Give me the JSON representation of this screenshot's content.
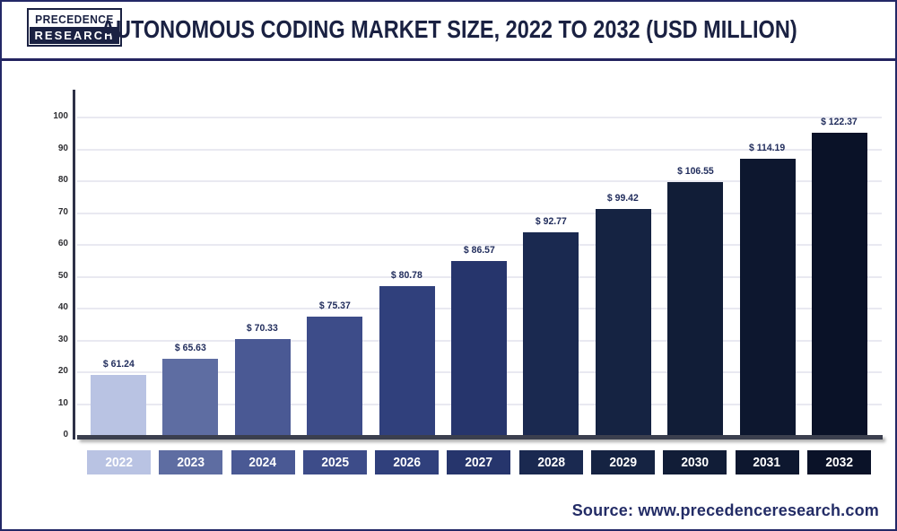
{
  "header": {
    "logo_line1": "PRECEDENCE",
    "logo_line2": "RESEARCH",
    "title": "AUTONOMOUS CODING MARKET SIZE, 2022 TO 2032 (USD MILLION)"
  },
  "footer": {
    "source_label": "Source: www.precedenceresearch.com"
  },
  "chart_data": {
    "type": "bar",
    "title": "Autonomous Coding Market Size, 2022 to 2032 (USD Million)",
    "unit": "USD Million",
    "categories": [
      "2022",
      "2023",
      "2024",
      "2025",
      "2026",
      "2027",
      "2028",
      "2029",
      "2030",
      "2031",
      "2032"
    ],
    "values": [
      61.24,
      65.63,
      70.33,
      75.37,
      80.78,
      86.57,
      92.77,
      99.42,
      106.55,
      114.19,
      122.37
    ],
    "labels": [
      "$ 61.24",
      "$ 65.63",
      "$ 70.33",
      "$ 75.37",
      "$ 80.78",
      "$ 86.57",
      "$ 92.77",
      "$ 99.42",
      "$ 106.55",
      "$ 114.19",
      "$ 122.37"
    ],
    "y_ticks": [
      0,
      10,
      20,
      30,
      40,
      50,
      60,
      70,
      80,
      90,
      100
    ],
    "ylim": [
      0,
      100
    ],
    "grid": true,
    "legend": "none",
    "bar_colors": [
      "#b9c3e3",
      "#5e6da2",
      "#4a5994",
      "#3d4c89",
      "#30407c",
      "#26356c",
      "#1a2950",
      "#152342",
      "#111d37",
      "#0d172f",
      "#0a1228"
    ],
    "display_height_pct": [
      18.9,
      23.9,
      30.1,
      37.2,
      46.8,
      54.6,
      63.7,
      71.0,
      79.4,
      86.8,
      95.8
    ]
  }
}
